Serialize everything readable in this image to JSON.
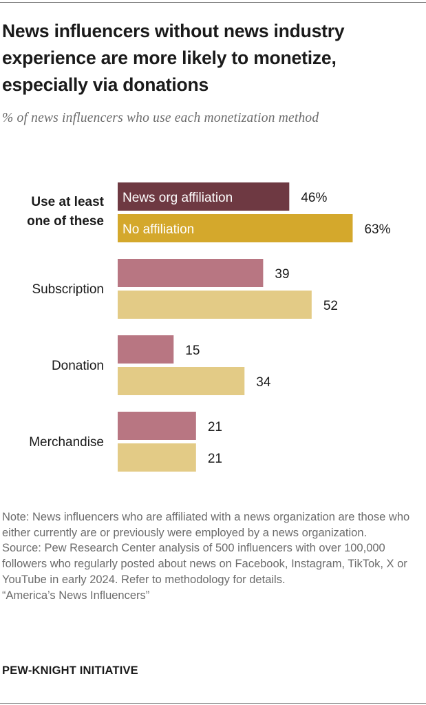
{
  "title": "News influencers without news industry experience are more likely to monetize, especially via donations",
  "subtitle": "% of news influencers who use each monetization method",
  "chart_data": {
    "type": "bar",
    "orientation": "horizontal",
    "categories": [
      "Use at least one of these",
      "Subscription",
      "Donation",
      "Merchandise"
    ],
    "series": [
      {
        "name": "News org affiliation",
        "values": [
          46,
          39,
          15,
          21
        ],
        "color": "#b87682",
        "highlight_color": "#6e3942"
      },
      {
        "name": "No affiliation",
        "values": [
          63,
          52,
          34,
          21
        ],
        "color": "#e3cb86",
        "highlight_color": "#d4a82c"
      }
    ],
    "value_labels": [
      [
        "46%",
        "39",
        "15",
        "21"
      ],
      [
        "63%",
        "52",
        "34",
        "21"
      ]
    ],
    "legend_placement": "inside first bars",
    "xlim": [
      0,
      100
    ]
  },
  "note": "Note: News influencers who are affiliated with a news organization are those who either currently are or previously were employed by a news organization.",
  "source": "Source: Pew Research Center analysis of 500 influencers with over 100,000 followers who regularly posted about news on Facebook, Instagram, TikTok, X or YouTube in early 2024. Refer to methodology for details.",
  "report": "“America’s News Influencers”",
  "brand": "PEW-KNIGHT INITIATIVE"
}
